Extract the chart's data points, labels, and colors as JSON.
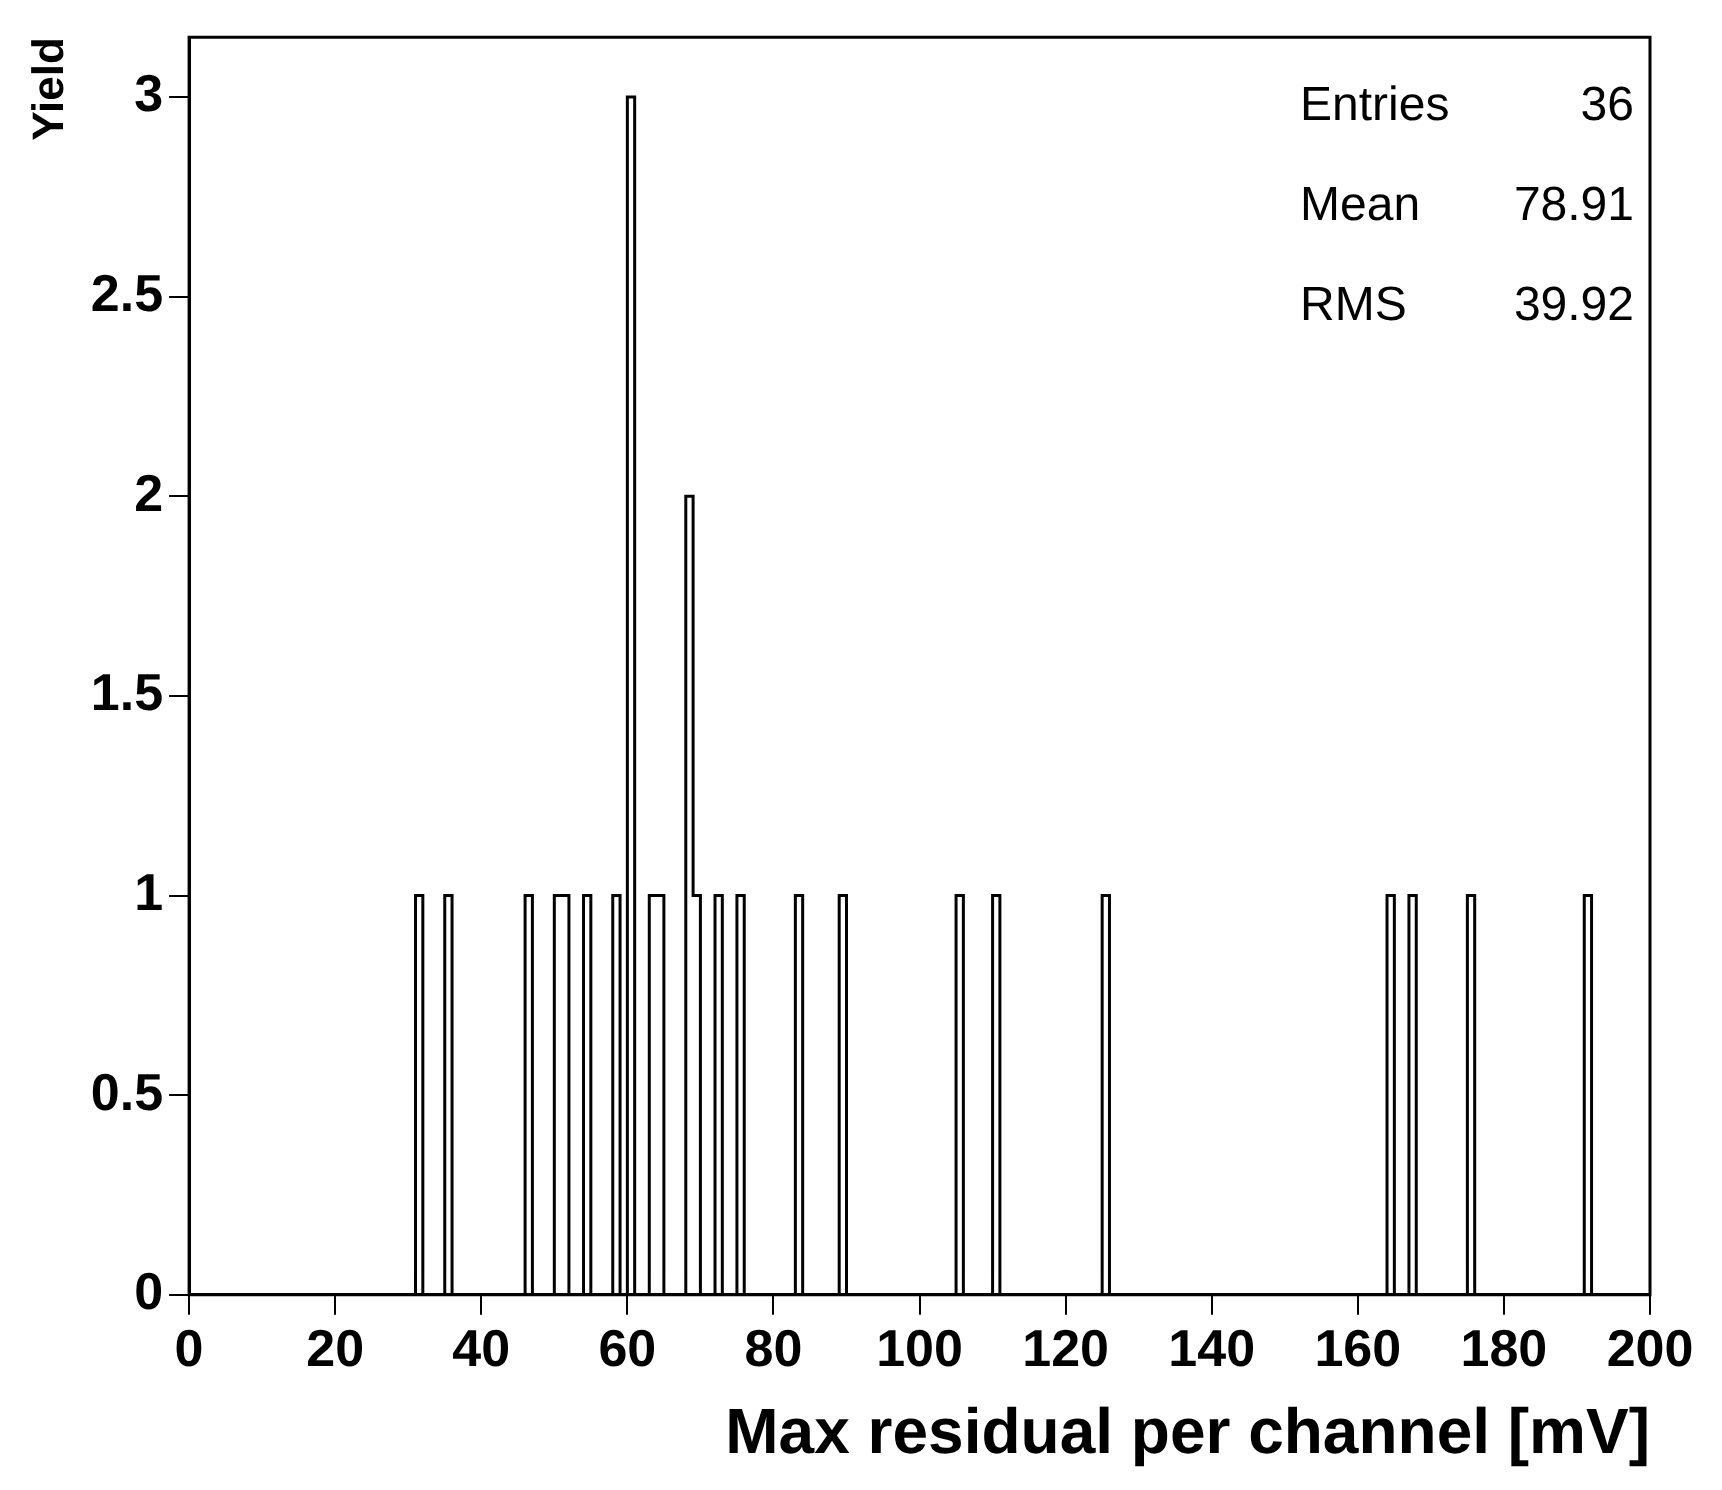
{
  "chart_data": {
    "type": "histogram",
    "xlabel": "Max residual per channel [mV]",
    "ylabel": "Yield",
    "bins": [
      0,
      31,
      32,
      35,
      36,
      46,
      47,
      50,
      51,
      52,
      54,
      55,
      58,
      59,
      60,
      61,
      63,
      64,
      65,
      68,
      69,
      70,
      72,
      73,
      75,
      76,
      83,
      84,
      89,
      90,
      105,
      106,
      110,
      111,
      125,
      126,
      164,
      165,
      167,
      168,
      175,
      176,
      191,
      192,
      200
    ],
    "values": [
      0,
      1,
      0,
      1,
      0,
      1,
      0,
      1,
      1,
      0,
      1,
      0,
      1,
      0,
      3,
      0,
      1,
      1,
      0,
      2,
      1,
      0,
      1,
      0,
      1,
      0,
      1,
      0,
      1,
      0,
      1,
      0,
      1,
      0,
      1,
      0,
      1,
      0,
      1,
      0,
      1,
      0,
      1,
      0
    ],
    "color": "#000000",
    "xlim": [
      0,
      200
    ],
    "xticks": [
      0,
      20,
      40,
      60,
      80,
      100,
      120,
      140,
      160,
      180,
      200
    ],
    "ylim": [
      0,
      3.15
    ],
    "yticks": [
      0,
      0.5,
      1,
      1.5,
      2,
      2.5,
      3
    ],
    "annotations": [
      "Entries 36",
      "Mean 78.91",
      "RMS 39.92"
    ],
    "grid": false,
    "legend": false
  }
}
